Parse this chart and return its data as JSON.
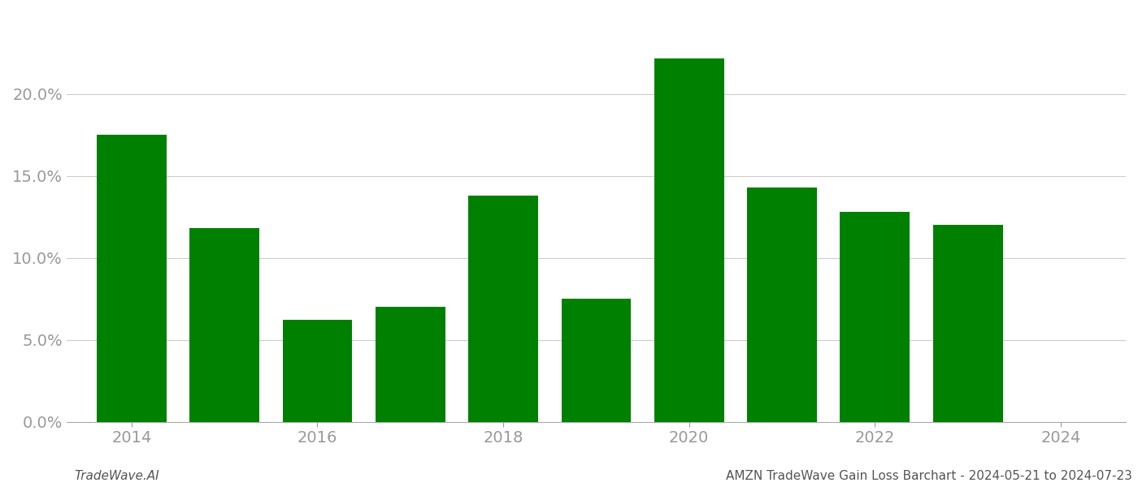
{
  "years": [
    2014,
    2015,
    2016,
    2017,
    2018,
    2019,
    2020,
    2021,
    2022,
    2023
  ],
  "values": [
    0.175,
    0.118,
    0.062,
    0.07,
    0.138,
    0.075,
    0.222,
    0.143,
    0.128,
    0.12
  ],
  "bar_color": "#008000",
  "background_color": "#ffffff",
  "grid_color": "#cccccc",
  "axis_color": "#aaaaaa",
  "tick_color": "#999999",
  "ylim": [
    0,
    0.25
  ],
  "yticks": [
    0.0,
    0.05,
    0.1,
    0.15,
    0.2
  ],
  "xticks": [
    2014,
    2016,
    2018,
    2020,
    2022,
    2024
  ],
  "xlim_left": 2013.3,
  "xlim_right": 2024.7,
  "bar_width": 0.75,
  "footer_left": "TradeWave.AI",
  "footer_right": "AMZN TradeWave Gain Loss Barchart - 2024-05-21 to 2024-07-23",
  "tick_fontsize": 14,
  "footer_fontsize": 11
}
